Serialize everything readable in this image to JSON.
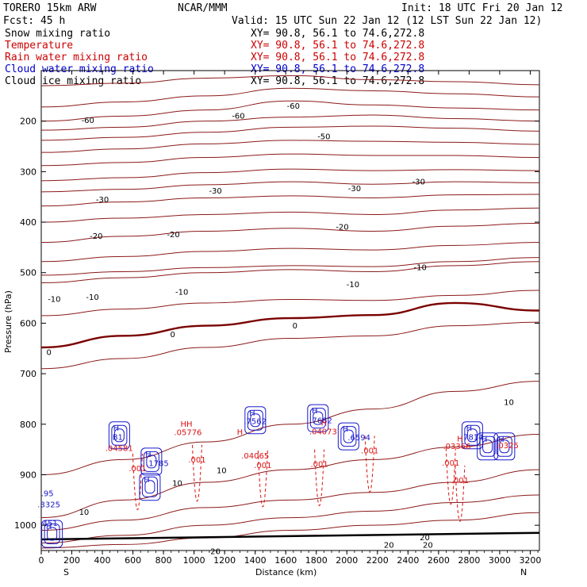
{
  "header": {
    "model": "TORERO  15km ARW",
    "center": "NCAR/MMM",
    "init": "Init: 18 UTC Fri 20 Jan 12",
    "fcst": "Fcst:    45 h",
    "valid": "Valid: 15 UTC Sun 22 Jan 12 (12 LST Sun 22 Jan 12)"
  },
  "fields": [
    {
      "name": "Snow mixing ratio",
      "xy": "XY=  90.8, 56.1 to  74.6,272.8",
      "color": "#000000"
    },
    {
      "name": "Temperature",
      "xy": "XY=  90.8, 56.1 to  74.6,272.8",
      "color": "#cc0000"
    },
    {
      "name": "Rain water mixing ratio",
      "xy": "XY=  90.8, 56.1 to  74.6,272.8",
      "color": "#cc0000"
    },
    {
      "name": "Cloud water mixing ratio",
      "xy": "XY=  90.8, 56.1 to  74.6,272.8",
      "color": "#0000cc"
    },
    {
      "name": "Cloud ice mixing ratio",
      "xy": "XY=  90.8, 56.1 to  74.6,272.8",
      "color": "#000000"
    }
  ],
  "chart_data": {
    "type": "contour",
    "xlabel": "Distance (km)",
    "ylabel": "Pressure (hPa)",
    "xlim": [
      0,
      3260
    ],
    "ylim": [
      1050,
      100
    ],
    "x_ticks": [
      "0",
      "200",
      "400",
      "600",
      "800",
      "1000",
      "1200",
      "1400",
      "1600",
      "1800",
      "2000",
      "2200",
      "2400",
      "2600",
      "2800",
      "3000",
      "3200"
    ],
    "y_ticks": [
      "200",
      "300",
      "400",
      "500",
      "600",
      "700",
      "800",
      "900",
      "1000"
    ],
    "left_end": "S",
    "right_end": "N",
    "colors": {
      "temperature": "#8b1a1a",
      "freezing": "#7a0000",
      "rain": "#dd1111",
      "cloud_water": "#1a1acc",
      "ground": "#000000"
    },
    "temperature_isotherms": [
      {
        "t": -60,
        "p": [
          130,
          125,
          115,
          110,
          118,
          122,
          128
        ]
      },
      {
        "t": -55,
        "p": [
          172,
          162,
          150,
          135,
          140,
          146,
          152
        ]
      },
      {
        "t": -60,
        "p": [
          200,
          190,
          178,
          160,
          168,
          174,
          178
        ]
      },
      {
        "t": -55,
        "p": [
          218,
          212,
          200,
          192,
          188,
          195,
          200
        ]
      },
      {
        "t": -50,
        "p": [
          238,
          232,
          222,
          212,
          210,
          214,
          220
        ]
      },
      {
        "t": -45,
        "p": [
          262,
          255,
          245,
          238,
          240,
          242,
          246
        ]
      },
      {
        "t": -40,
        "p": [
          288,
          282,
          272,
          265,
          268,
          268,
          272
        ]
      },
      {
        "t": -35,
        "p": [
          318,
          312,
          302,
          295,
          298,
          296,
          298
        ]
      },
      {
        "t": -30,
        "p": [
          340,
          335,
          326,
          320,
          325,
          320,
          322
        ]
      },
      {
        "t": -25,
        "p": [
          368,
          360,
          352,
          348,
          352,
          346,
          345
        ]
      },
      {
        "t": -20,
        "p": [
          400,
          392,
          385,
          380,
          385,
          376,
          372
        ]
      },
      {
        "t": -15,
        "p": [
          440,
          428,
          418,
          412,
          418,
          408,
          402
        ]
      },
      {
        "t": -10,
        "p": [
          478,
          468,
          458,
          452,
          455,
          446,
          440
        ]
      },
      {
        "t": -5,
        "p": [
          520,
          510,
          500,
          494,
          498,
          486,
          478
        ]
      },
      {
        "t": -10,
        "p": [
          505,
          498,
          490,
          486,
          488,
          478,
          470
        ]
      },
      {
        "t": -5,
        "p": [
          585,
          572,
          560,
          553,
          555,
          545,
          535
        ]
      },
      {
        "t": 0,
        "p": [
          648,
          625,
          605,
          590,
          584,
          560,
          575
        ]
      },
      {
        "t": 5,
        "p": [
          690,
          670,
          648,
          630,
          625,
          605,
          598
        ]
      },
      {
        "t": 10,
        "p": [
          900,
          870,
          835,
          800,
          770,
          735,
          715
        ]
      },
      {
        "t": 10,
        "p": [
          985,
          950,
          915,
          890,
          870,
          845,
          820
        ]
      },
      {
        "t": 15,
        "p": [
          1010,
          990,
          965,
          950,
          935,
          915,
          890
        ]
      },
      {
        "t": 20,
        "p": [
          1035,
          1020,
          1000,
          985,
          972,
          955,
          940
        ]
      },
      {
        "t": 20,
        "p": [
          1045,
          1038,
          1025,
          1010,
          1000,
          990,
          975
        ]
      }
    ],
    "isotherm_x": [
      0,
      540,
      1080,
      1630,
      2170,
      2710,
      3260
    ],
    "temperature_labels": [
      {
        "text": "-60",
        "x": 305,
        "p": 199
      },
      {
        "text": "-60",
        "x": 1290,
        "p": 190
      },
      {
        "text": "-60",
        "x": 1650,
        "p": 171
      },
      {
        "text": "-50",
        "x": 1850,
        "p": 231
      },
      {
        "text": "-30",
        "x": 400,
        "p": 356
      },
      {
        "text": "-30",
        "x": 1140,
        "p": 339
      },
      {
        "text": "-30",
        "x": 2050,
        "p": 334
      },
      {
        "text": "-30",
        "x": 2470,
        "p": 321
      },
      {
        "text": "-20",
        "x": 360,
        "p": 428
      },
      {
        "text": "-20",
        "x": 865,
        "p": 425
      },
      {
        "text": "-20",
        "x": 1970,
        "p": 410
      },
      {
        "text": "-10",
        "x": 85,
        "p": 553
      },
      {
        "text": "-10",
        "x": 335,
        "p": 549
      },
      {
        "text": "-10",
        "x": 920,
        "p": 539
      },
      {
        "text": "-10",
        "x": 2040,
        "p": 524
      },
      {
        "text": "-10",
        "x": 2480,
        "p": 490
      },
      {
        "text": "0",
        "x": 50,
        "p": 658
      },
      {
        "text": "0",
        "x": 860,
        "p": 623
      },
      {
        "text": "0",
        "x": 1660,
        "p": 606
      },
      {
        "text": "10",
        "x": 3060,
        "p": 757
      },
      {
        "text": "10",
        "x": 1180,
        "p": 892
      },
      {
        "text": "10",
        "x": 890,
        "p": 917
      },
      {
        "text": "10",
        "x": 280,
        "p": 975
      },
      {
        "text": "20",
        "x": 1140,
        "p": 1052
      },
      {
        "text": "20",
        "x": 2275,
        "p": 1040
      },
      {
        "text": "20",
        "x": 2510,
        "p": 1025
      },
      {
        "text": "20",
        "x": 2530,
        "p": 1040
      }
    ],
    "cloud_water_labels": [
      {
        "text": "H",
        "x": 490,
        "p": 808
      },
      {
        "text": "B1",
        "x": 500,
        "p": 826
      },
      {
        "text": "H",
        "x": 700,
        "p": 860
      },
      {
        "text": ".1785",
        "x": 760,
        "p": 878
      },
      {
        "text": "H",
        "x": 1380,
        "p": 778
      },
      {
        "text": ".7562",
        "x": 1400,
        "p": 795
      },
      {
        "text": "H",
        "x": 1790,
        "p": 774
      },
      {
        "text": ".7682",
        "x": 1830,
        "p": 793
      },
      {
        "text": "H",
        "x": 1990,
        "p": 810
      },
      {
        "text": ".6594",
        "x": 2080,
        "p": 827
      },
      {
        "text": "H",
        "x": 2800,
        "p": 808
      },
      {
        "text": ".7814",
        "x": 2820,
        "p": 826
      },
      {
        "text": "H",
        "x": 3010,
        "p": 830
      },
      {
        "text": "H",
        "x": 2900,
        "p": 830
      },
      {
        "text": "H",
        "x": 690,
        "p": 910
      },
      {
        "text": "H",
        "x": 50,
        "p": 1003
      },
      {
        "text": ".95",
        "x": 40,
        "p": 938
      },
      {
        "text": ".3325",
        "x": 50,
        "p": 960
      },
      {
        "text": ".451",
        "x": 50,
        "p": 997
      }
    ],
    "rain_labels": [
      {
        "text": ".04581",
        "x": 510,
        "p": 848
      },
      {
        "text": ".001",
        "x": 630,
        "p": 888
      },
      {
        "text": ".05776",
        "x": 960,
        "p": 817
      },
      {
        "text": "HH",
        "x": 950,
        "p": 800
      },
      {
        "text": ".001",
        "x": 1020,
        "p": 871
      },
      {
        "text": "H",
        "x": 1300,
        "p": 816
      },
      {
        "text": ".04065",
        "x": 1400,
        "p": 863
      },
      {
        "text": ".001",
        "x": 1450,
        "p": 882
      },
      {
        "text": ".04073",
        "x": 1845,
        "p": 815
      },
      {
        "text": "H",
        "x": 1850,
        "p": 798
      },
      {
        "text": ".001",
        "x": 1820,
        "p": 880
      },
      {
        "text": ".001",
        "x": 2150,
        "p": 853
      },
      {
        "text": ".03366",
        "x": 2720,
        "p": 844
      },
      {
        "text": ".001",
        "x": 2680,
        "p": 877
      },
      {
        "text": ".001",
        "x": 2740,
        "p": 912
      },
      {
        "text": ".0325",
        "x": 3050,
        "p": 843
      },
      {
        "text": "H",
        "x": 2740,
        "p": 829
      }
    ]
  }
}
